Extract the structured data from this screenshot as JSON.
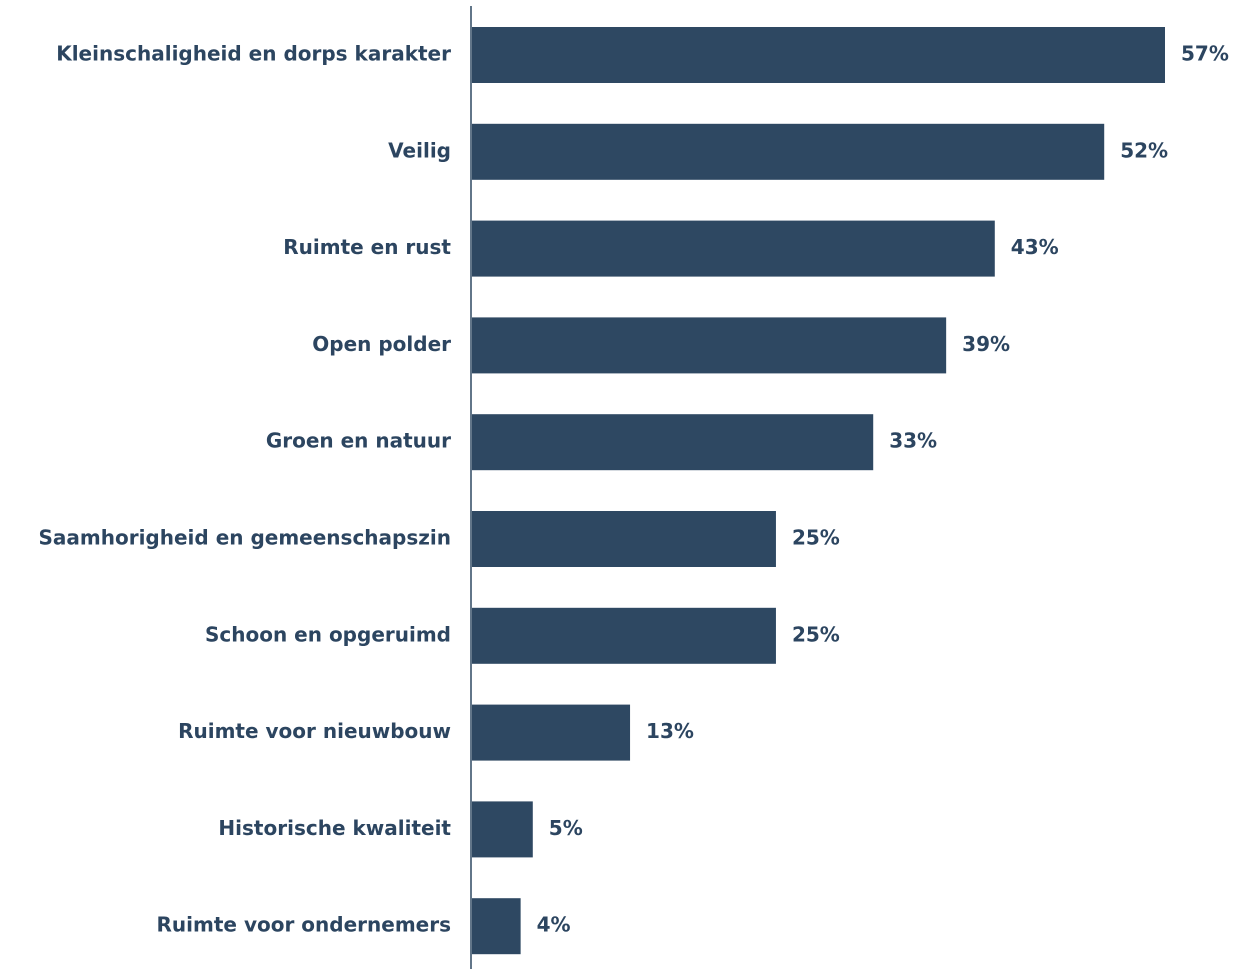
{
  "colors": {
    "bar": "#2e4862",
    "text": "#2c4560",
    "axis": "#2e4862"
  },
  "chart_data": {
    "type": "bar",
    "orientation": "horizontal",
    "categories": [
      "Kleinschaligheid en dorps karakter",
      "Veilig",
      "Ruimte en rust",
      "Open polder",
      "Groen en natuur",
      "Saamhorigheid en gemeenschapszin",
      "Schoon en opgeruimd",
      "Ruimte voor nieuwbouw",
      "Historische kwaliteit",
      "Ruimte voor ondernemers"
    ],
    "values": [
      57,
      52,
      43,
      39,
      33,
      25,
      25,
      13,
      5,
      4
    ],
    "value_labels": [
      "57%",
      "52%",
      "43%",
      "39%",
      "33%",
      "25%",
      "25%",
      "13%",
      "5%",
      "4%"
    ],
    "xlim": [
      0,
      57
    ],
    "grid": false,
    "legend": "none"
  }
}
